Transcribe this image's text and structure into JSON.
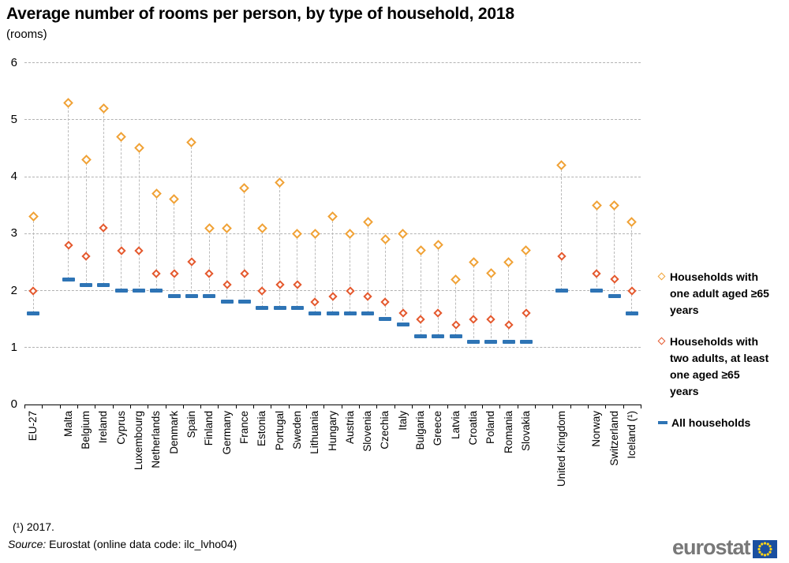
{
  "title": "Average number of rooms per person, by type of household, 2018",
  "subtitle": "(rooms)",
  "footnote": "(¹) 2017.",
  "source": {
    "label": "Source:",
    "text": " Eurostat (online data code: ilc_lvho04)"
  },
  "logo": {
    "text": "eurostat"
  },
  "chart_data": {
    "type": "scatter",
    "title": "Average number of rooms per person, by type of household, 2018",
    "ylabel": "rooms",
    "ylim": [
      0,
      6
    ],
    "yticks": [
      0,
      1,
      2,
      3,
      4,
      5,
      6
    ],
    "grid": true,
    "legend_position": "right",
    "categories": [
      "EU-27",
      "",
      "Malta",
      "Belgium",
      "Ireland",
      "Cyprus",
      "Luxembourg",
      "Netherlands",
      "Denmark",
      "Spain",
      "Finland",
      "Germany",
      "France",
      "Estonia",
      "Portugal",
      "Sweden",
      "Lithuania",
      "Hungary",
      "Austria",
      "Slovenia",
      "Czechia",
      "Italy",
      "Bulgaria",
      "Greece",
      "Latvia",
      "Croatia",
      "Poland",
      "Romania",
      "Slovakia",
      "",
      "United Kingdom",
      "",
      "Norway",
      "Switzerland",
      "Iceland (¹)"
    ],
    "series": [
      {
        "name": "Households with one adult aged ≥65 years",
        "marker": "diamond",
        "color": "#F0A236",
        "values": [
          3.3,
          null,
          5.3,
          4.3,
          5.2,
          4.7,
          4.5,
          3.7,
          3.6,
          4.6,
          3.1,
          3.1,
          3.8,
          3.1,
          3.9,
          3.0,
          3.0,
          3.3,
          3.0,
          3.2,
          2.9,
          3.0,
          2.7,
          2.8,
          2.2,
          2.5,
          2.3,
          2.5,
          2.7,
          null,
          4.2,
          null,
          3.5,
          3.5,
          3.2
        ]
      },
      {
        "name": "Households with two adults, at least one aged ≥65 years",
        "marker": "diamond",
        "color": "#E4582D",
        "values": [
          2.0,
          null,
          2.8,
          2.6,
          3.1,
          2.7,
          2.7,
          2.3,
          2.3,
          2.5,
          2.3,
          2.1,
          2.3,
          2.0,
          2.1,
          2.1,
          1.8,
          1.9,
          2.0,
          1.9,
          1.8,
          1.6,
          1.5,
          1.6,
          1.4,
          1.5,
          1.5,
          1.4,
          1.6,
          null,
          2.6,
          null,
          2.3,
          2.2,
          2.0
        ]
      },
      {
        "name": "All households",
        "marker": "dash",
        "color": "#2E74B5",
        "values": [
          1.6,
          null,
          2.2,
          2.1,
          2.1,
          2.0,
          2.0,
          2.0,
          1.9,
          1.9,
          1.9,
          1.8,
          1.8,
          1.7,
          1.7,
          1.7,
          1.6,
          1.6,
          1.6,
          1.6,
          1.5,
          1.4,
          1.2,
          1.2,
          1.2,
          1.1,
          1.1,
          1.1,
          1.1,
          null,
          2.0,
          null,
          2.0,
          1.9,
          1.6
        ]
      }
    ]
  }
}
